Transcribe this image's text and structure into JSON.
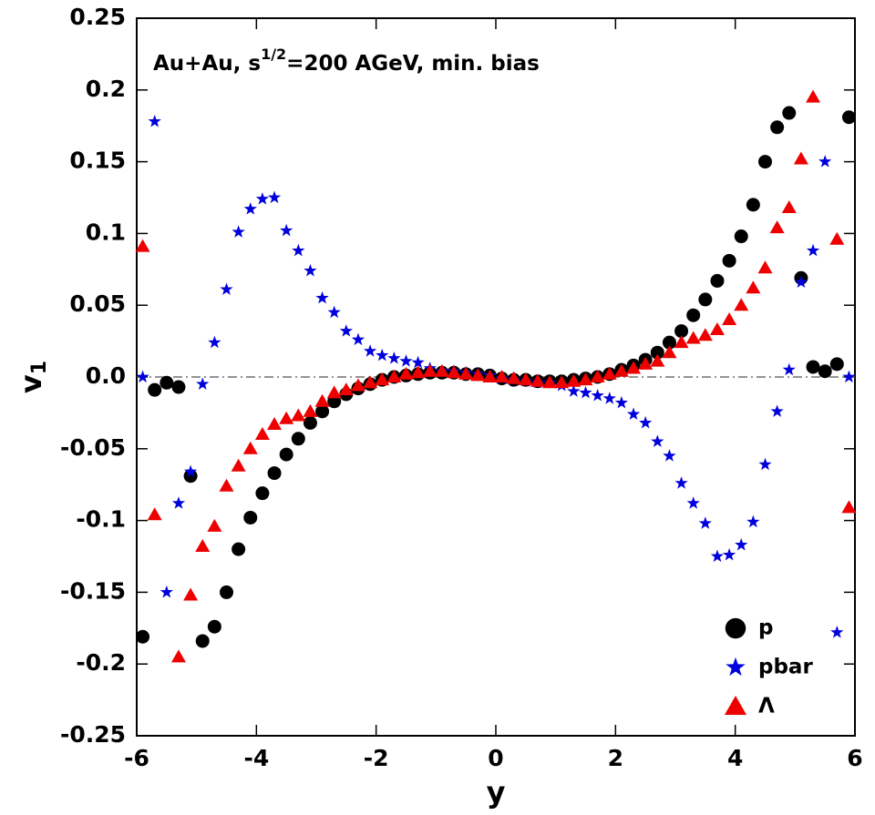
{
  "chart_data": {
    "type": "scatter",
    "annotation": [
      "Au+Au, s",
      "1/2",
      "=200 AGeV, min. bias"
    ],
    "xlabel": "y",
    "ylabel": [
      "v",
      "1"
    ],
    "xlim": [
      -6,
      6
    ],
    "ylim": [
      -0.25,
      0.25
    ],
    "xticks": [
      -6,
      -4,
      -2,
      0,
      2,
      4,
      6
    ],
    "yticks": [
      -0.25,
      -0.2,
      -0.15,
      -0.1,
      -0.05,
      {
        "value": 0,
        "label": "0.0"
      },
      0.05,
      0.1,
      0.15,
      0.2,
      0.25
    ],
    "zero_line": true,
    "legend": "lower right",
    "x": [
      -5.9,
      -5.7,
      -5.5,
      -5.3,
      -5.1,
      -4.9,
      -4.7,
      -4.5,
      -4.3,
      -4.1,
      -3.9,
      -3.7,
      -3.5,
      -3.3,
      -3.1,
      -2.9,
      -2.7,
      -2.5,
      -2.3,
      -2.1,
      -1.9,
      -1.7,
      -1.5,
      -1.3,
      -1.1,
      -0.9,
      -0.7,
      -0.5,
      -0.3,
      -0.1,
      0.1,
      0.3,
      0.5,
      0.7,
      0.9,
      1.1,
      1.3,
      1.5,
      1.7,
      1.9,
      2.1,
      2.3,
      2.5,
      2.7,
      2.9,
      3.1,
      3.3,
      3.5,
      3.7,
      3.9,
      4.1,
      4.3,
      4.5,
      4.7,
      4.9,
      5.1,
      5.3,
      5.5,
      5.7,
      5.9
    ],
    "series": [
      {
        "name": "p",
        "color": "#000000",
        "marker": "circle",
        "values": [
          -0.181,
          -0.009,
          -0.004,
          -0.007,
          -0.069,
          -0.184,
          -0.174,
          -0.15,
          -0.12,
          -0.098,
          -0.081,
          -0.067,
          -0.054,
          -0.043,
          -0.032,
          -0.024,
          -0.017,
          -0.012,
          -0.008,
          -0.005,
          -0.002,
          0.0,
          0.001,
          0.002,
          0.003,
          0.003,
          0.003,
          0.002,
          0.002,
          0.001,
          -0.001,
          -0.002,
          -0.002,
          -0.003,
          -0.003,
          -0.003,
          -0.002,
          -0.001,
          0.0,
          0.002,
          0.005,
          0.008,
          0.012,
          0.017,
          0.024,
          0.032,
          0.043,
          0.054,
          0.067,
          0.081,
          0.098,
          0.12,
          0.15,
          0.174,
          0.184,
          0.069,
          0.007,
          0.004,
          0.009,
          0.181
        ]
      },
      {
        "name": "pbar",
        "color": "#0000dd",
        "marker": "star",
        "values": [
          0.0,
          0.178,
          -0.15,
          -0.088,
          -0.066,
          -0.005,
          0.024,
          0.061,
          0.101,
          0.117,
          0.124,
          0.125,
          0.102,
          0.088,
          0.074,
          0.055,
          0.045,
          0.032,
          0.026,
          0.018,
          0.015,
          0.013,
          0.011,
          0.01,
          0.006,
          0.004,
          0.004,
          0.003,
          0.002,
          0.001,
          -0.001,
          -0.002,
          -0.003,
          -0.004,
          -0.004,
          -0.006,
          -0.01,
          -0.011,
          -0.013,
          -0.015,
          -0.018,
          -0.026,
          -0.032,
          -0.045,
          -0.055,
          -0.074,
          -0.088,
          -0.102,
          -0.125,
          -0.124,
          -0.117,
          -0.101,
          -0.061,
          -0.024,
          0.005,
          0.066,
          0.088,
          0.15,
          -0.178,
          0.0
        ]
      },
      {
        "name": "Λ",
        "color": "#ee0000",
        "marker": "triangle",
        "values": [
          0.091,
          -0.096,
          null,
          -0.195,
          -0.152,
          -0.118,
          -0.104,
          -0.076,
          -0.062,
          -0.05,
          -0.04,
          -0.033,
          -0.029,
          -0.027,
          -0.024,
          -0.017,
          -0.011,
          -0.009,
          -0.006,
          -0.004,
          -0.002,
          0.0,
          0.002,
          0.003,
          0.004,
          0.004,
          0.003,
          0.002,
          0.001,
          0.0,
          0.0,
          -0.001,
          -0.002,
          -0.003,
          -0.004,
          -0.004,
          -0.003,
          -0.002,
          0.0,
          0.002,
          0.004,
          0.006,
          0.009,
          0.011,
          0.017,
          0.024,
          0.027,
          0.029,
          0.033,
          0.04,
          0.05,
          0.062,
          0.076,
          0.104,
          0.118,
          0.152,
          0.195,
          null,
          0.096,
          -0.091
        ]
      }
    ]
  }
}
